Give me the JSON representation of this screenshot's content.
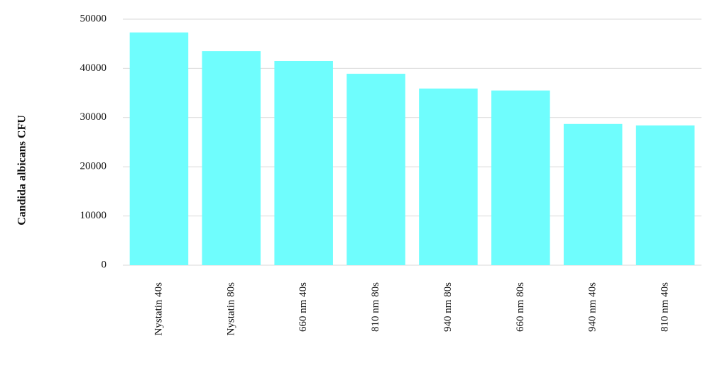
{
  "chart_data": {
    "type": "bar",
    "y_label": "Candida albicans CFU",
    "categories": [
      "Nystatin 40s",
      "Nystatin 80s",
      "660 nm 40s",
      "810 nm 80s",
      "940 nm 80s",
      "660 nm 80s",
      "940 nm 40s",
      "810 nm 40s"
    ],
    "values": [
      47300,
      43500,
      41500,
      38900,
      35900,
      35500,
      28700,
      28400
    ],
    "color": "#6ffdfd",
    "ylim": [
      0,
      50000
    ],
    "yticks": [
      0,
      10000,
      20000,
      30000,
      40000,
      50000
    ],
    "grid": true
  }
}
